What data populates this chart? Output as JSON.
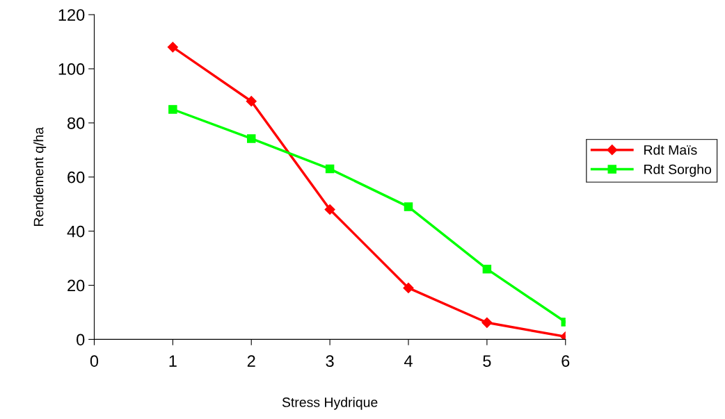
{
  "chart_data": {
    "type": "line",
    "xlabel": "Stress Hydrique",
    "ylabel": "Rendement q/ha",
    "x": [
      1,
      2,
      3,
      4,
      5,
      6
    ],
    "series": [
      {
        "name": "Rdt Maïs",
        "color": "#ff0000",
        "marker": "diamond",
        "values": [
          108,
          88,
          48,
          19,
          6.2,
          1
        ]
      },
      {
        "name": "Rdt Sorgho",
        "color": "#00ff00",
        "marker": "square",
        "values": [
          85,
          74.2,
          63,
          49,
          26,
          6.4
        ]
      }
    ],
    "xlim": [
      0,
      6
    ],
    "xticks": [
      0,
      1,
      2,
      3,
      4,
      5,
      6
    ],
    "ylim": [
      0,
      120
    ],
    "yticks": [
      0,
      20,
      40,
      60,
      80,
      100,
      120
    ],
    "grid": false,
    "legend": "right",
    "line_style": "solid"
  }
}
